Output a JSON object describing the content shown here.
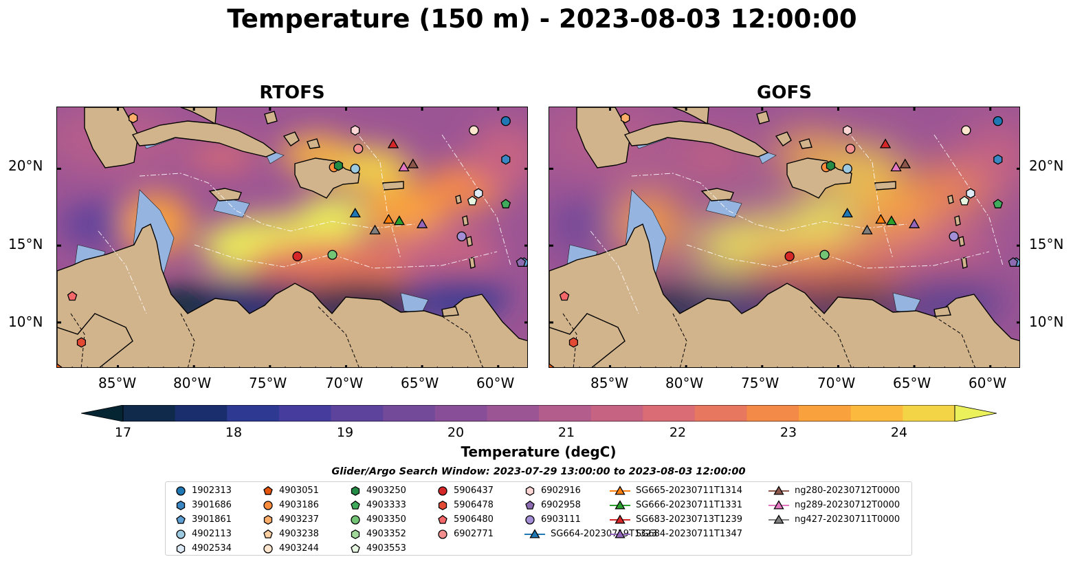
{
  "title": "Temperature (150 m) - 2023-08-03 12:00:00",
  "panels": [
    {
      "title": "RTOFS"
    },
    {
      "title": "GOFS"
    }
  ],
  "lat_labels": [
    "20°N",
    "15°N",
    "10°N"
  ],
  "lon_labels": [
    "85°W",
    "80°W",
    "75°W",
    "70°W",
    "65°W",
    "60°W"
  ],
  "colorbar": {
    "label": "Temperature (degC)",
    "ticks": [
      "17",
      "18",
      "19",
      "20",
      "21",
      "22",
      "23",
      "24"
    ],
    "min": 16.5,
    "max": 24.5,
    "extend": "both"
  },
  "search_window": "Glider/Argo Search Window: 2023-07-29 13:00:00 to 2023-08-03 12:00:00",
  "colors": {
    "land": "#d2b48c",
    "shelf": "#95b4e0",
    "cmap": [
      "#062533",
      "#0f2a4a",
      "#1a2e6e",
      "#2e3a92",
      "#453c9e",
      "#5e439c",
      "#73499a",
      "#884f98",
      "#9c5594",
      "#b35d8c",
      "#c66383",
      "#d96c75",
      "#e8775f",
      "#f48a48",
      "#f9a23d",
      "#fbba3e",
      "#f4d447",
      "#ebf15a"
    ]
  },
  "legend": {
    "items": [
      {
        "label": "1902313",
        "color": "#1f77b4",
        "marker": "circle"
      },
      {
        "label": "3901686",
        "color": "#3a87c4",
        "marker": "hexagon"
      },
      {
        "label": "3901861",
        "color": "#5fa0d4",
        "marker": "pentagon"
      },
      {
        "label": "4902113",
        "color": "#9ecae1",
        "marker": "circle"
      },
      {
        "label": "4902534",
        "color": "#deebf7",
        "marker": "hexagon"
      },
      {
        "label": "4903051",
        "color": "#e6550d",
        "marker": "pentagon"
      },
      {
        "label": "4903186",
        "color": "#fd8d3c",
        "marker": "circle"
      },
      {
        "label": "4903237",
        "color": "#fdae6b",
        "marker": "hexagon"
      },
      {
        "label": "4903238",
        "color": "#fdd0a2",
        "marker": "pentagon"
      },
      {
        "label": "4903244",
        "color": "#fee6ce",
        "marker": "circle"
      },
      {
        "label": "4903250",
        "color": "#238b45",
        "marker": "hexagon"
      },
      {
        "label": "4903333",
        "color": "#41ab5d",
        "marker": "pentagon"
      },
      {
        "label": "4903350",
        "color": "#74c476",
        "marker": "circle"
      },
      {
        "label": "4903352",
        "color": "#a1d99b",
        "marker": "hexagon"
      },
      {
        "label": "4903553",
        "color": "#e5f5e0",
        "marker": "pentagon"
      },
      {
        "label": "5906437",
        "color": "#d62728",
        "marker": "circle"
      },
      {
        "label": "5906478",
        "color": "#e34a33",
        "marker": "hexagon"
      },
      {
        "label": "5906480",
        "color": "#f4686a",
        "marker": "pentagon"
      },
      {
        "label": "6902771",
        "color": "#f28e8e",
        "marker": "circle"
      },
      {
        "label": "6902916",
        "color": "#fcd5d5",
        "marker": "hexagon"
      },
      {
        "label": "6902958",
        "color": "#8c6bb1",
        "marker": "pentagon"
      },
      {
        "label": "6903111",
        "color": "#a48fd6",
        "marker": "circle"
      },
      {
        "label": "SG664-20230719T1323",
        "color": "#1f77b4",
        "marker": "triangle"
      },
      {
        "label": "SG665-20230711T1314",
        "color": "#ff7f0e",
        "marker": "triangle"
      },
      {
        "label": "SG666-20230711T1331",
        "color": "#2ca02c",
        "marker": "triangle"
      },
      {
        "label": "SG683-20230713T1239",
        "color": "#d62728",
        "marker": "triangle"
      },
      {
        "label": "SG684-20230711T1347",
        "color": "#9467bd",
        "marker": "triangle"
      },
      {
        "label": "ng280-20230712T0000",
        "color": "#8c564b",
        "marker": "triangle"
      },
      {
        "label": "ng289-20230712T0000",
        "color": "#e377c2",
        "marker": "triangle"
      },
      {
        "label": "ng427-20230711T0000",
        "color": "#7f7f7f",
        "marker": "triangle"
      }
    ]
  },
  "map_extent": {
    "lon_min": -89,
    "lon_max": -58,
    "lat_min": 7,
    "lat_max": 24
  },
  "markers": [
    {
      "label": "1902313",
      "lon": -59.5,
      "lat": 23.1
    },
    {
      "label": "3901686",
      "lon": -59.5,
      "lat": 20.6
    },
    {
      "label": "3901861",
      "lon": -58.3,
      "lat": 13.9
    },
    {
      "label": "4902113",
      "lon": -69.4,
      "lat": 20.0
    },
    {
      "label": "4902534",
      "lon": -61.3,
      "lat": 18.4
    },
    {
      "label": "4903051",
      "lon": -89.0,
      "lat": 7.0
    },
    {
      "label": "4903186",
      "lon": -70.8,
      "lat": 20.1
    },
    {
      "label": "4903237",
      "lon": -84.0,
      "lat": 23.3
    },
    {
      "label": "4903244",
      "lon": -61.6,
      "lat": 22.5
    },
    {
      "label": "4903250",
      "lon": -70.5,
      "lat": 20.2
    },
    {
      "label": "4903333",
      "lon": -59.5,
      "lat": 17.7
    },
    {
      "label": "4903350",
      "lon": -70.9,
      "lat": 14.4
    },
    {
      "label": "4903553",
      "lon": -61.7,
      "lat": 17.9
    },
    {
      "label": "5906437",
      "lon": -73.2,
      "lat": 14.3
    },
    {
      "label": "5906478",
      "lon": -87.4,
      "lat": 8.7
    },
    {
      "label": "5906480",
      "lon": -88.0,
      "lat": 11.7
    },
    {
      "label": "6902771",
      "lon": -69.2,
      "lat": 21.3
    },
    {
      "label": "6902916",
      "lon": -69.4,
      "lat": 22.5
    },
    {
      "label": "6902958",
      "lon": -58.5,
      "lat": 13.9
    },
    {
      "label": "6903111",
      "lon": -62.4,
      "lat": 15.6
    },
    {
      "label": "SG664-20230719T1323",
      "lon": -69.4,
      "lat": 17.1
    },
    {
      "label": "SG665-20230711T1314",
      "lon": -67.2,
      "lat": 16.7
    },
    {
      "label": "SG666-20230711T1331",
      "lon": -66.5,
      "lat": 16.6
    },
    {
      "label": "SG683-20230713T1239",
      "lon": -66.9,
      "lat": 21.6
    },
    {
      "label": "SG684-20230711T1347",
      "lon": -65.0,
      "lat": 16.4
    },
    {
      "label": "ng280-20230712T0000",
      "lon": -65.6,
      "lat": 20.3
    },
    {
      "label": "ng289-20230712T0000",
      "lon": -66.2,
      "lat": 20.1
    },
    {
      "label": "ng427-20230711T0000",
      "lon": -68.1,
      "lat": 16.0
    }
  ]
}
